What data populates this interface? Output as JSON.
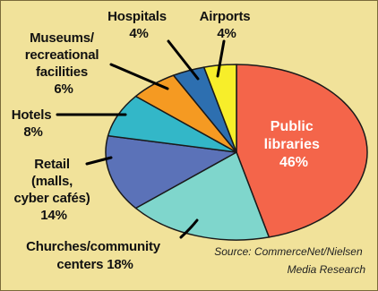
{
  "chart_data": {
    "type": "pie",
    "slices": [
      {
        "label": "Public libraries",
        "value": 46,
        "value_label": "46%",
        "color": "#f4654a"
      },
      {
        "label": "Churches/community centers",
        "value": 18,
        "value_label": "18%",
        "color": "#7fd6cc"
      },
      {
        "label": "Retail (malls, cyber cafés)",
        "value": 14,
        "value_label": "14%",
        "color": "#5b72b8"
      },
      {
        "label": "Hotels",
        "value": 8,
        "value_label": "8%",
        "color": "#33b7c8"
      },
      {
        "label": "Museums/recreational facilities",
        "value": 6,
        "value_label": "6%",
        "color": "#f59a22"
      },
      {
        "label": "Hospitals",
        "value": 4,
        "value_label": "4%",
        "color": "#2d6fb0"
      },
      {
        "label": "Airports",
        "value": 4,
        "value_label": "4%",
        "color": "#f7ee2a"
      }
    ],
    "labels": {
      "public_libraries": [
        "Public",
        "libraries",
        "46%"
      ],
      "churches": [
        "Churches/community",
        "centers  18%"
      ],
      "retail": [
        "Retail",
        "(malls,",
        "cyber cafés)",
        "14%"
      ],
      "hotels": [
        "Hotels",
        "8%"
      ],
      "museums": [
        "Museums/",
        "recreational",
        "facilities",
        "6%"
      ],
      "hospitals": [
        "Hospitals",
        "4%"
      ],
      "airports": [
        "Airports",
        "4%"
      ]
    },
    "source": [
      "Source: CommerceNet/Nielsen",
      "Media Research"
    ]
  }
}
